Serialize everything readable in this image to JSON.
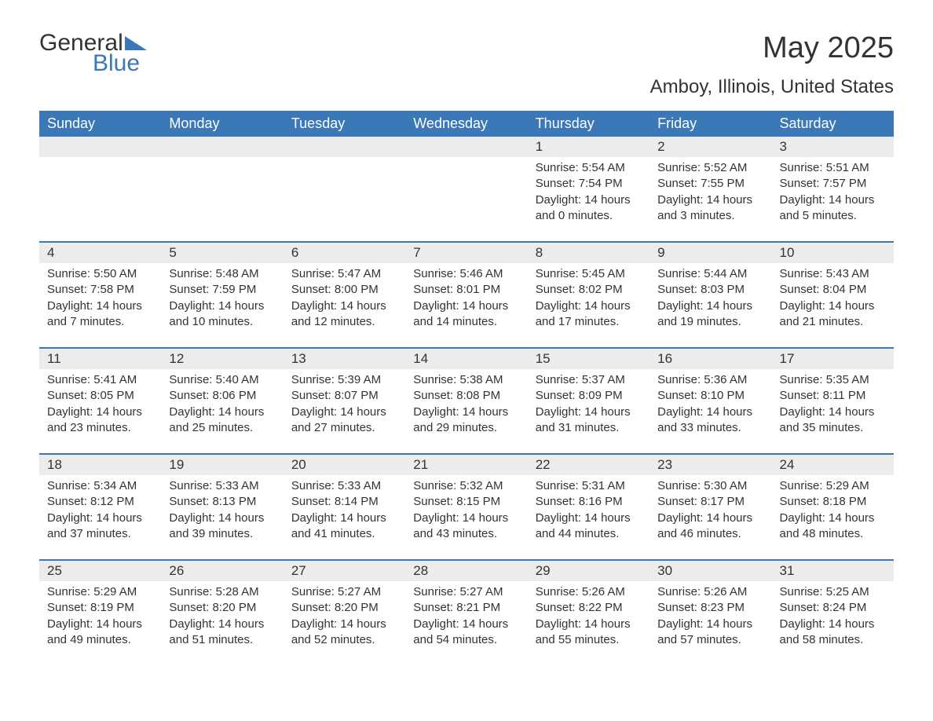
{
  "brand": {
    "general": "General",
    "blue": "Blue"
  },
  "title": "May 2025",
  "location": "Amboy, Illinois, United States",
  "colors": {
    "header_bg": "#3b78b8",
    "header_text": "#ffffff",
    "daynum_bg": "#ececec",
    "row_divider": "#3b78b8",
    "text": "#333333",
    "logo_blue": "#3b78b8"
  },
  "typography": {
    "title_fontsize": 38,
    "location_fontsize": 24,
    "header_fontsize": 18,
    "daynum_fontsize": 17,
    "body_fontsize": 15
  },
  "weekdays": [
    "Sunday",
    "Monday",
    "Tuesday",
    "Wednesday",
    "Thursday",
    "Friday",
    "Saturday"
  ],
  "first_weekday_index": 4,
  "days": [
    {
      "n": 1,
      "sunrise": "5:54 AM",
      "sunset": "7:54 PM",
      "dl_h": 14,
      "dl_m": 0
    },
    {
      "n": 2,
      "sunrise": "5:52 AM",
      "sunset": "7:55 PM",
      "dl_h": 14,
      "dl_m": 3
    },
    {
      "n": 3,
      "sunrise": "5:51 AM",
      "sunset": "7:57 PM",
      "dl_h": 14,
      "dl_m": 5
    },
    {
      "n": 4,
      "sunrise": "5:50 AM",
      "sunset": "7:58 PM",
      "dl_h": 14,
      "dl_m": 7
    },
    {
      "n": 5,
      "sunrise": "5:48 AM",
      "sunset": "7:59 PM",
      "dl_h": 14,
      "dl_m": 10
    },
    {
      "n": 6,
      "sunrise": "5:47 AM",
      "sunset": "8:00 PM",
      "dl_h": 14,
      "dl_m": 12
    },
    {
      "n": 7,
      "sunrise": "5:46 AM",
      "sunset": "8:01 PM",
      "dl_h": 14,
      "dl_m": 14
    },
    {
      "n": 8,
      "sunrise": "5:45 AM",
      "sunset": "8:02 PM",
      "dl_h": 14,
      "dl_m": 17
    },
    {
      "n": 9,
      "sunrise": "5:44 AM",
      "sunset": "8:03 PM",
      "dl_h": 14,
      "dl_m": 19
    },
    {
      "n": 10,
      "sunrise": "5:43 AM",
      "sunset": "8:04 PM",
      "dl_h": 14,
      "dl_m": 21
    },
    {
      "n": 11,
      "sunrise": "5:41 AM",
      "sunset": "8:05 PM",
      "dl_h": 14,
      "dl_m": 23
    },
    {
      "n": 12,
      "sunrise": "5:40 AM",
      "sunset": "8:06 PM",
      "dl_h": 14,
      "dl_m": 25
    },
    {
      "n": 13,
      "sunrise": "5:39 AM",
      "sunset": "8:07 PM",
      "dl_h": 14,
      "dl_m": 27
    },
    {
      "n": 14,
      "sunrise": "5:38 AM",
      "sunset": "8:08 PM",
      "dl_h": 14,
      "dl_m": 29
    },
    {
      "n": 15,
      "sunrise": "5:37 AM",
      "sunset": "8:09 PM",
      "dl_h": 14,
      "dl_m": 31
    },
    {
      "n": 16,
      "sunrise": "5:36 AM",
      "sunset": "8:10 PM",
      "dl_h": 14,
      "dl_m": 33
    },
    {
      "n": 17,
      "sunrise": "5:35 AM",
      "sunset": "8:11 PM",
      "dl_h": 14,
      "dl_m": 35
    },
    {
      "n": 18,
      "sunrise": "5:34 AM",
      "sunset": "8:12 PM",
      "dl_h": 14,
      "dl_m": 37
    },
    {
      "n": 19,
      "sunrise": "5:33 AM",
      "sunset": "8:13 PM",
      "dl_h": 14,
      "dl_m": 39
    },
    {
      "n": 20,
      "sunrise": "5:33 AM",
      "sunset": "8:14 PM",
      "dl_h": 14,
      "dl_m": 41
    },
    {
      "n": 21,
      "sunrise": "5:32 AM",
      "sunset": "8:15 PM",
      "dl_h": 14,
      "dl_m": 43
    },
    {
      "n": 22,
      "sunrise": "5:31 AM",
      "sunset": "8:16 PM",
      "dl_h": 14,
      "dl_m": 44
    },
    {
      "n": 23,
      "sunrise": "5:30 AM",
      "sunset": "8:17 PM",
      "dl_h": 14,
      "dl_m": 46
    },
    {
      "n": 24,
      "sunrise": "5:29 AM",
      "sunset": "8:18 PM",
      "dl_h": 14,
      "dl_m": 48
    },
    {
      "n": 25,
      "sunrise": "5:29 AM",
      "sunset": "8:19 PM",
      "dl_h": 14,
      "dl_m": 49
    },
    {
      "n": 26,
      "sunrise": "5:28 AM",
      "sunset": "8:20 PM",
      "dl_h": 14,
      "dl_m": 51
    },
    {
      "n": 27,
      "sunrise": "5:27 AM",
      "sunset": "8:20 PM",
      "dl_h": 14,
      "dl_m": 52
    },
    {
      "n": 28,
      "sunrise": "5:27 AM",
      "sunset": "8:21 PM",
      "dl_h": 14,
      "dl_m": 54
    },
    {
      "n": 29,
      "sunrise": "5:26 AM",
      "sunset": "8:22 PM",
      "dl_h": 14,
      "dl_m": 55
    },
    {
      "n": 30,
      "sunrise": "5:26 AM",
      "sunset": "8:23 PM",
      "dl_h": 14,
      "dl_m": 57
    },
    {
      "n": 31,
      "sunrise": "5:25 AM",
      "sunset": "8:24 PM",
      "dl_h": 14,
      "dl_m": 58
    }
  ],
  "labels": {
    "sunrise_prefix": "Sunrise: ",
    "sunset_prefix": "Sunset: ",
    "daylight_prefix": "Daylight: ",
    "hours_word": " hours and ",
    "minutes_word": " minutes."
  }
}
